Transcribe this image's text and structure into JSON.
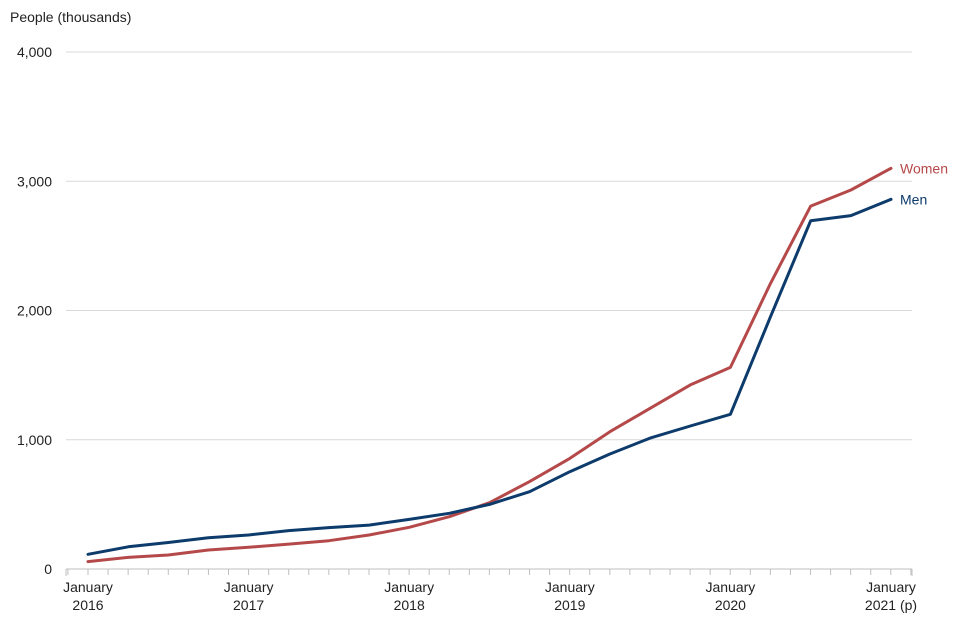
{
  "chart_data": {
    "type": "line",
    "title": "",
    "ylabel": "People (thousands)",
    "xlabel": "",
    "ylim": [
      0,
      4000
    ],
    "yticks": [
      0,
      1000,
      2000,
      3000,
      4000
    ],
    "ytick_labels": [
      "0",
      "1,000",
      "2,000",
      "3,000",
      "4,000"
    ],
    "x_period": "quarterly, January 2016 to January 2021",
    "xtick_labels": [
      {
        "line1": "January",
        "line2": "2016",
        "index": 0
      },
      {
        "line1": "January",
        "line2": "2017",
        "index": 4
      },
      {
        "line1": "January",
        "line2": "2018",
        "index": 8
      },
      {
        "line1": "January",
        "line2": "2019",
        "index": 12
      },
      {
        "line1": "January",
        "line2": "2020",
        "index": 16
      },
      {
        "line1": "January",
        "line2": "2021 (p)",
        "index": 20
      }
    ],
    "grid": true,
    "legend": "direct labels at line ends (right)",
    "series": [
      {
        "name": "Women",
        "color": "#b5494a",
        "values": [
          57,
          90,
          108,
          147,
          168,
          193,
          219,
          263,
          323,
          405,
          513,
          676,
          856,
          1062,
          1243,
          1424,
          1560,
          2210,
          2808,
          2932,
          3100
        ]
      },
      {
        "name": "Men",
        "color": "#0d3b6b",
        "values": [
          114,
          172,
          205,
          242,
          263,
          297,
          320,
          340,
          384,
          431,
          500,
          598,
          753,
          890,
          1013,
          1106,
          1197,
          1952,
          2695,
          2734,
          2860
        ]
      }
    ]
  }
}
